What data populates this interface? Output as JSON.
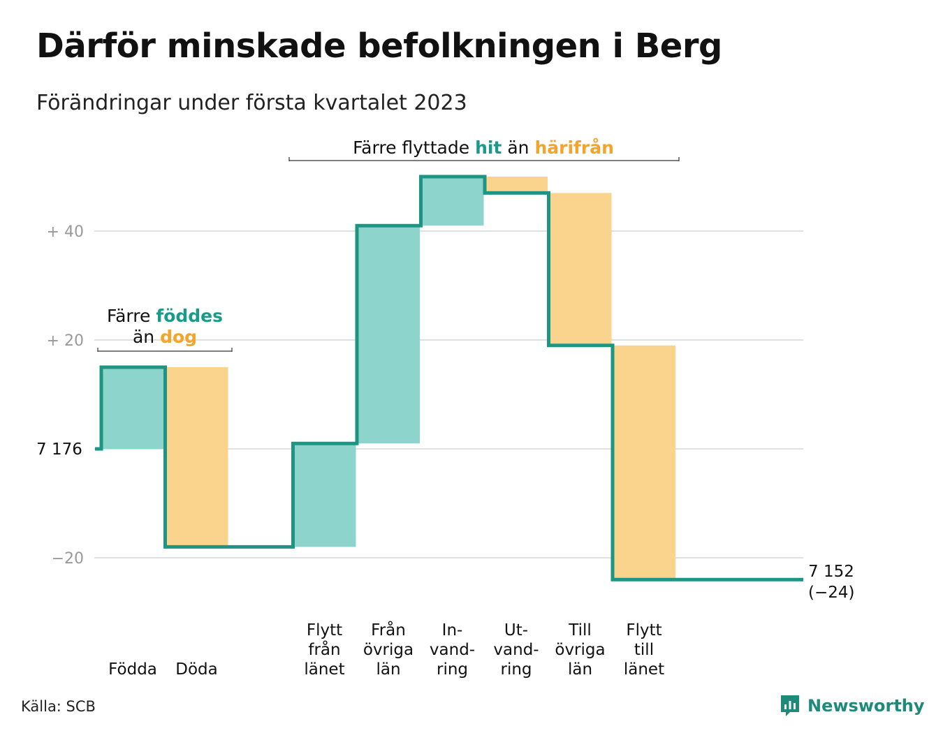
{
  "header": {
    "title": "Därför minskade befolkningen i Berg",
    "subtitle": "Förändringar under första kvartalet 2023"
  },
  "footer": {
    "source": "Källa: SCB",
    "brand": "Newsworthy"
  },
  "colors": {
    "increase": "#8dd4cc",
    "decrease": "#fad38c",
    "line": "#1e9583",
    "accent_teal": "#1a9a88",
    "accent_orange": "#f5a42a",
    "grid": "#e0e0e0",
    "tick": "#999999"
  },
  "chart_data": {
    "type": "waterfall",
    "start": {
      "value": 7176,
      "label": "7 176"
    },
    "end": {
      "value": 7152,
      "label": "7 152",
      "change_label": "(−24)"
    },
    "steps": [
      {
        "category": [
          "Födda"
        ],
        "change": 15,
        "kind": "increase"
      },
      {
        "category": [
          "Döda"
        ],
        "change": -33,
        "kind": "decrease"
      },
      {
        "category": [
          "Flytt",
          "från",
          "länet"
        ],
        "change": 19,
        "kind": "increase"
      },
      {
        "category": [
          "Från",
          "övriga",
          "län"
        ],
        "change": 40,
        "kind": "increase"
      },
      {
        "category": [
          "In-",
          "vand-",
          "ring"
        ],
        "change": 9,
        "kind": "increase"
      },
      {
        "category": [
          "Ut-",
          "vand-",
          "ring"
        ],
        "change": -3,
        "kind": "decrease"
      },
      {
        "category": [
          "Till",
          "övriga",
          "län"
        ],
        "change": -28,
        "kind": "decrease"
      },
      {
        "category": [
          "Flytt",
          "till",
          "länet"
        ],
        "change": -43,
        "kind": "decrease"
      }
    ],
    "yaxis": {
      "ticks": [
        {
          "value": 40,
          "label": "+ 40"
        },
        {
          "value": 20,
          "label": "+ 20"
        },
        {
          "value": -20,
          "label": "−20"
        }
      ],
      "range": [
        -27,
        52
      ],
      "grid": true
    },
    "annotations": [
      {
        "id": "births",
        "lines": [
          [
            {
              "text": "Färre ",
              "style": "plain"
            },
            {
              "text": "föddes",
              "style": "teal"
            }
          ],
          [
            {
              "text": "än ",
              "style": "plain"
            },
            {
              "text": "dog",
              "style": "orange"
            }
          ]
        ]
      },
      {
        "id": "moves",
        "lines": [
          [
            {
              "text": "Färre flyttade ",
              "style": "plain"
            },
            {
              "text": "hit",
              "style": "teal"
            },
            {
              "text": " än ",
              "style": "plain"
            },
            {
              "text": "härifrån",
              "style": "orange"
            }
          ]
        ]
      }
    ]
  }
}
